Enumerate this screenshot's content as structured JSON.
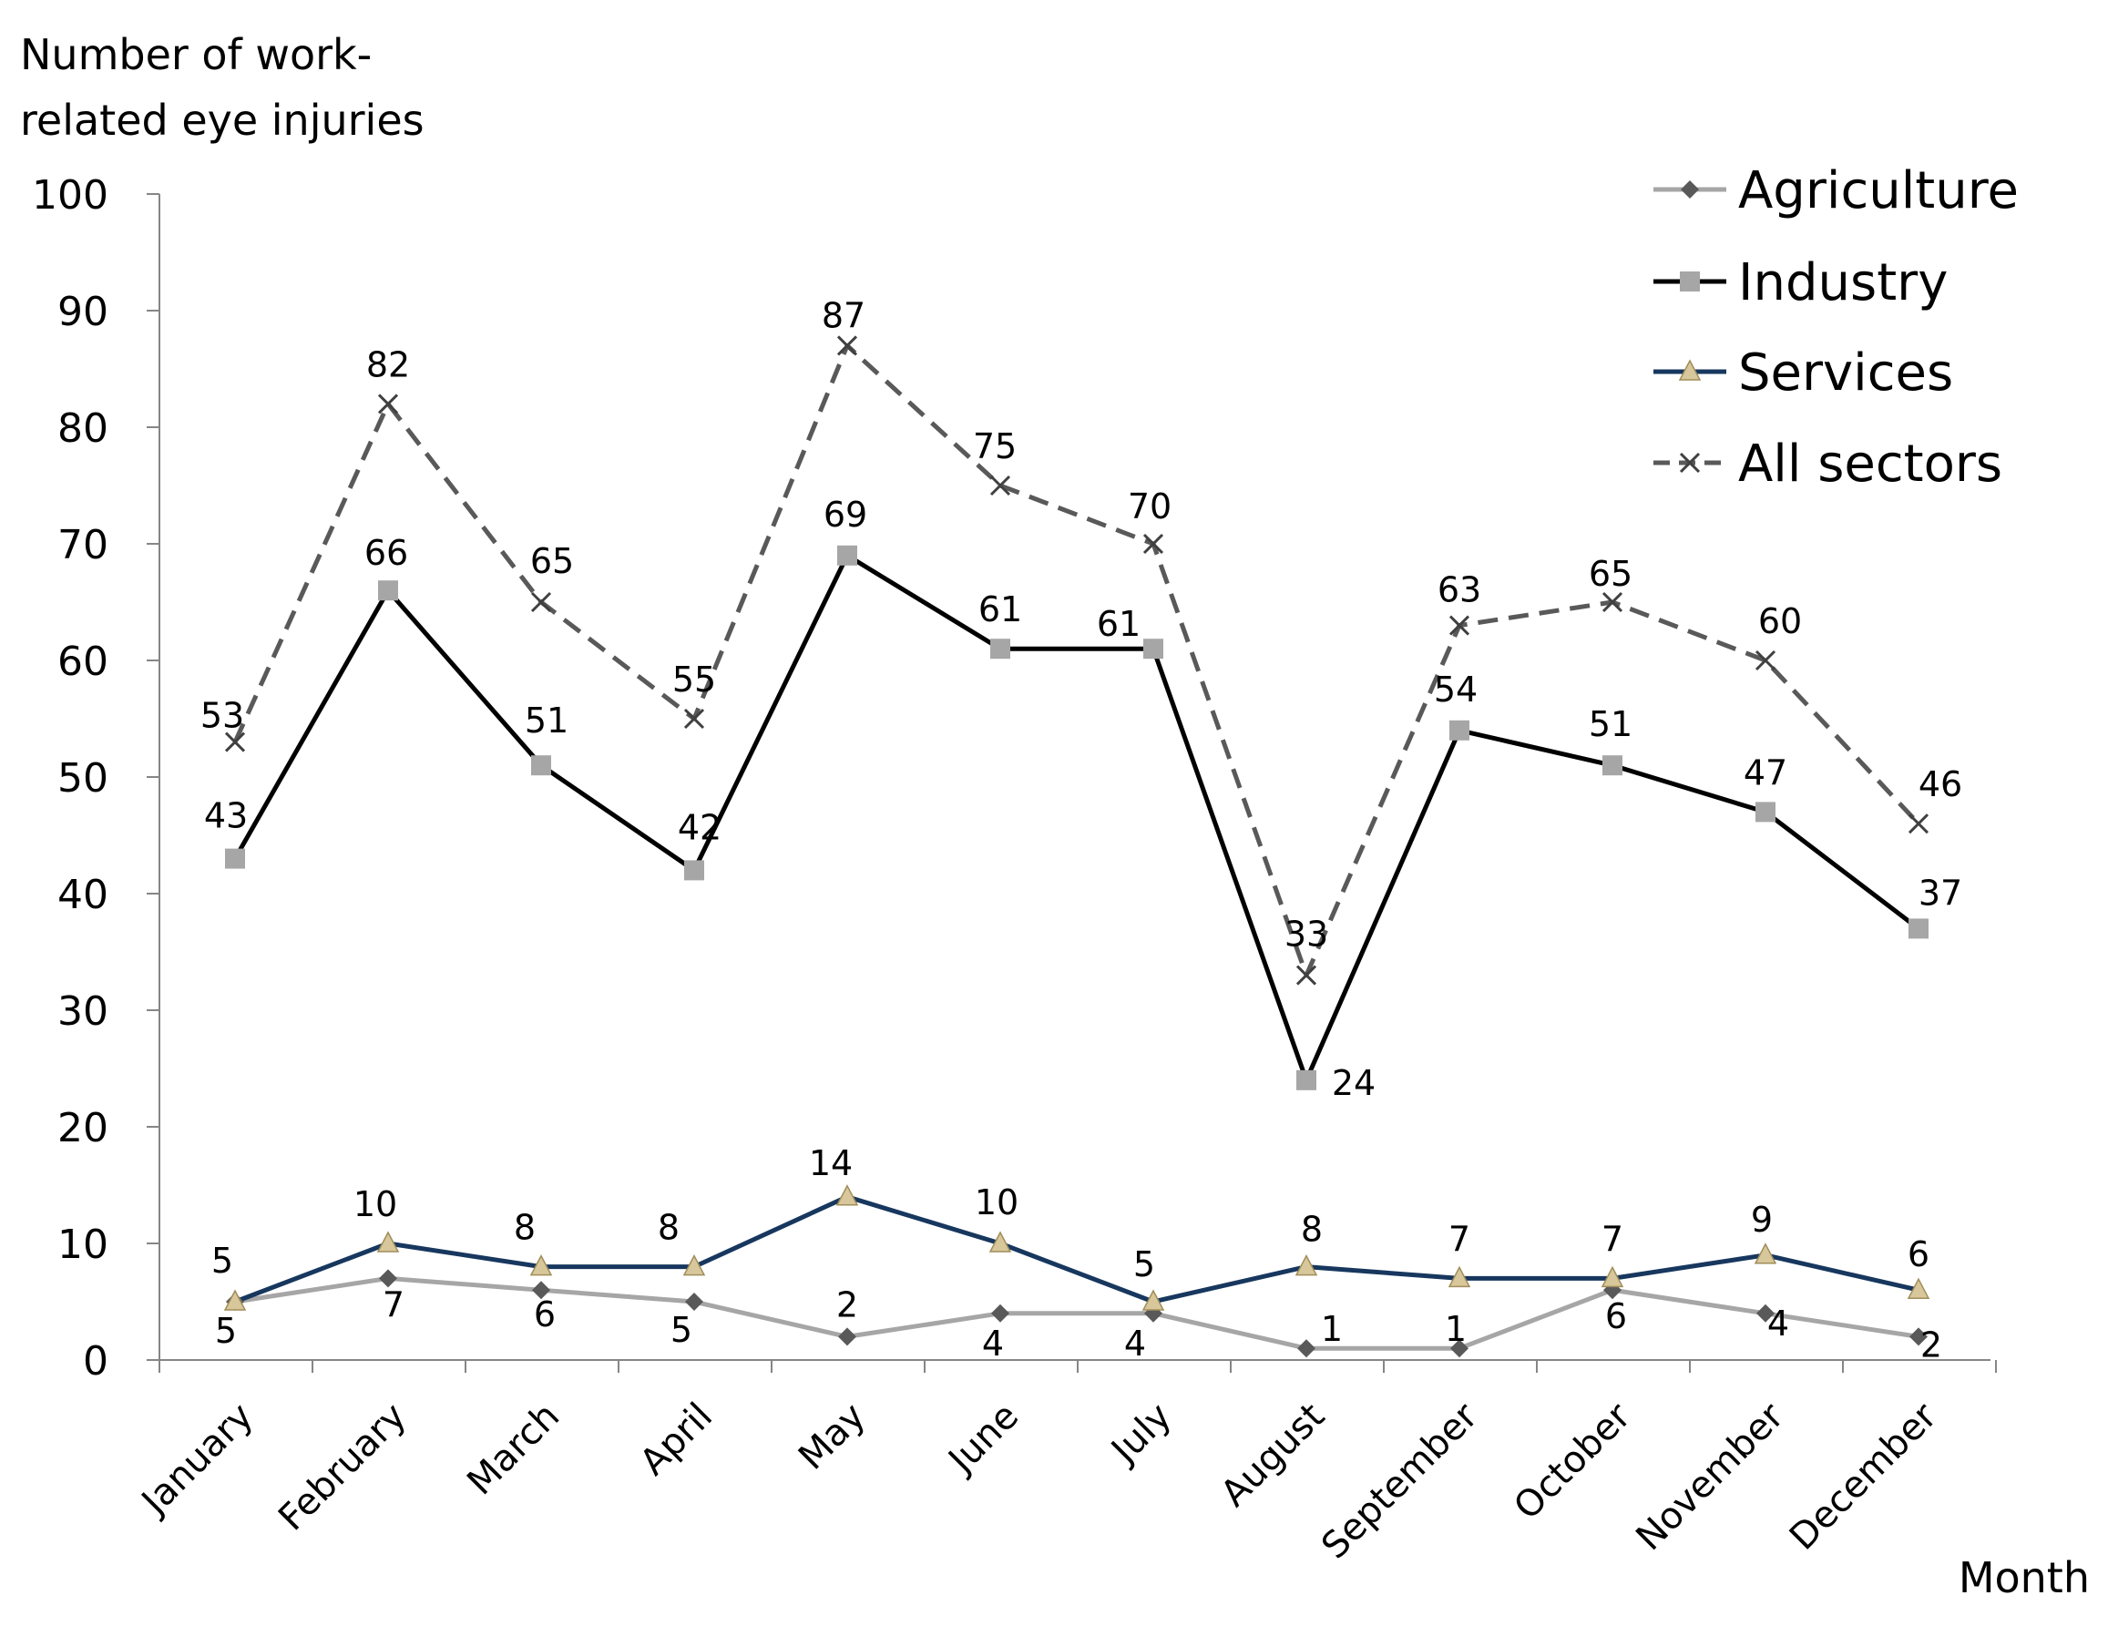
{
  "chart_data": {
    "type": "line",
    "ylabel_lines": [
      "Number of work-",
      "related eye injuries"
    ],
    "xlabel": "Month",
    "ylim": [
      0,
      100
    ],
    "yticks": [
      0,
      10,
      20,
      30,
      40,
      50,
      60,
      70,
      80,
      90,
      100
    ],
    "grid": false,
    "legend_position": "top-right",
    "categories": [
      "January",
      "February",
      "March",
      "April",
      "May",
      "June",
      "July",
      "August",
      "September",
      "October",
      "November",
      "December"
    ],
    "series": [
      {
        "name": "Agriculture",
        "values": [
          5,
          7,
          6,
          5,
          2,
          4,
          4,
          1,
          1,
          6,
          4,
          2
        ],
        "line_color": "#a6a6a6",
        "marker": "diamond",
        "marker_color": "#595959",
        "dashed": false
      },
      {
        "name": "Industry",
        "values": [
          43,
          66,
          51,
          42,
          69,
          61,
          61,
          24,
          54,
          51,
          47,
          37
        ],
        "line_color": "#000000",
        "marker": "square",
        "marker_color": "#a6a6a6",
        "dashed": false
      },
      {
        "name": "Services",
        "values": [
          5,
          10,
          8,
          8,
          14,
          10,
          5,
          8,
          7,
          7,
          9,
          6
        ],
        "line_color": "#17375e",
        "marker": "triangle",
        "marker_color": "#d8c79a",
        "dashed": false
      },
      {
        "name": "All sectors",
        "values": [
          53,
          82,
          65,
          55,
          87,
          75,
          70,
          33,
          63,
          65,
          60,
          46
        ],
        "line_color": "#595959",
        "marker": "x",
        "marker_color": "#404040",
        "dashed": true
      }
    ]
  }
}
